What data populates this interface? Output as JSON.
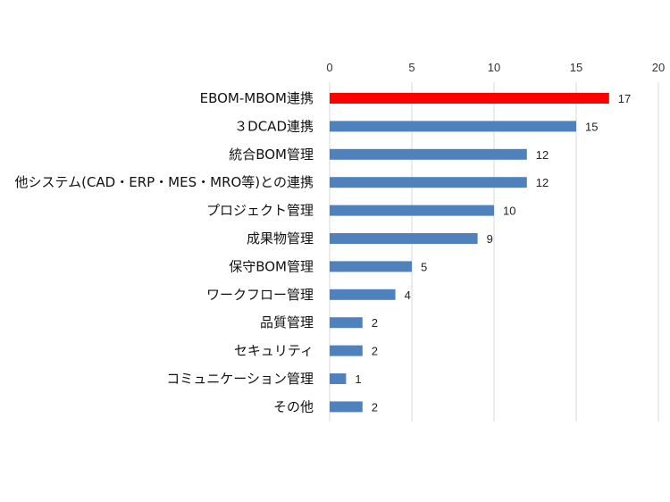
{
  "chart_data": {
    "type": "bar",
    "orientation": "horizontal",
    "title": "",
    "xlabel": "",
    "ylabel": "",
    "categories": [
      "EBOM-MBOM連携",
      "３DCAD連携",
      "統合BOM管理",
      "他システム(CAD・ERP・MES・MRO等)との連携",
      "プロジェクト管理",
      "成果物管理",
      "保守BOM管理",
      "ワークフロー管理",
      "品質管理",
      "セキュリティ",
      "コミュニケーション管理",
      "その他"
    ],
    "values": [
      17,
      15,
      12,
      12,
      10,
      9,
      5,
      4,
      2,
      2,
      1,
      2
    ],
    "xlim": [
      0,
      20
    ],
    "xticks": [
      0,
      5,
      10,
      15,
      20
    ],
    "x_axis_position": "top",
    "grid": true,
    "data_labels": true,
    "highlight_index": 0,
    "colors": {
      "highlight": "#ff0000",
      "default": "#4f81bd"
    }
  }
}
